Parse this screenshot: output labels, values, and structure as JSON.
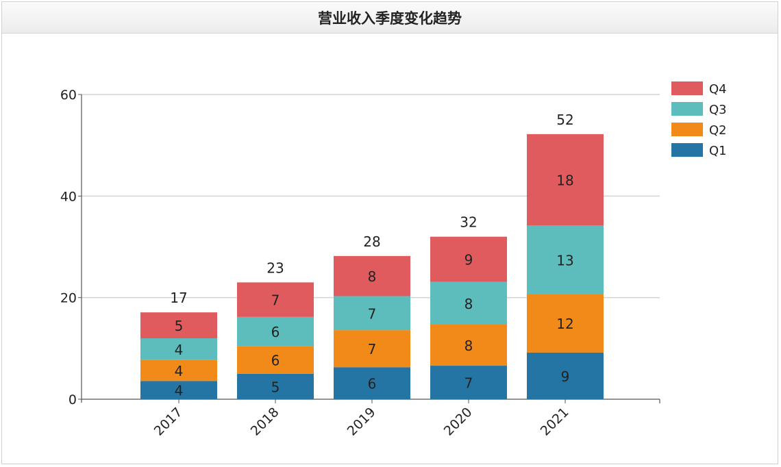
{
  "panel": {
    "title": "营业收入季度变化趋势"
  },
  "chart_data": {
    "type": "bar",
    "stacked": true,
    "title": "",
    "xlabel": "",
    "ylabel": "",
    "categories": [
      "2017",
      "2018",
      "2019",
      "2020",
      "2021"
    ],
    "ylim": [
      0,
      60
    ],
    "yticks": [
      0,
      20,
      40,
      60
    ],
    "grid": true,
    "legend_position": "top-right",
    "series": [
      {
        "name": "Q1",
        "color": "#2474a4",
        "values": [
          3.6,
          5.0,
          6.3,
          6.6,
          9.2
        ],
        "labels": [
          "4",
          "5",
          "6",
          "7",
          "9"
        ]
      },
      {
        "name": "Q2",
        "color": "#f28a1a",
        "values": [
          4.1,
          5.5,
          7.3,
          8.1,
          11.5
        ],
        "labels": [
          "4",
          "6",
          "7",
          "8",
          "12"
        ]
      },
      {
        "name": "Q3",
        "color": "#5dbdbd",
        "values": [
          4.3,
          5.7,
          6.7,
          8.4,
          13.5
        ],
        "labels": [
          "4",
          "6",
          "7",
          "8",
          "13"
        ]
      },
      {
        "name": "Q4",
        "color": "#df5b5d",
        "values": [
          5.1,
          6.8,
          7.9,
          8.9,
          18.0
        ],
        "labels": [
          "5",
          "7",
          "8",
          "9",
          "18"
        ]
      }
    ],
    "totals": [
      "17",
      "23",
      "28",
      "32",
      "52"
    ],
    "legend_order": [
      "Q4",
      "Q3",
      "Q2",
      "Q1"
    ]
  }
}
